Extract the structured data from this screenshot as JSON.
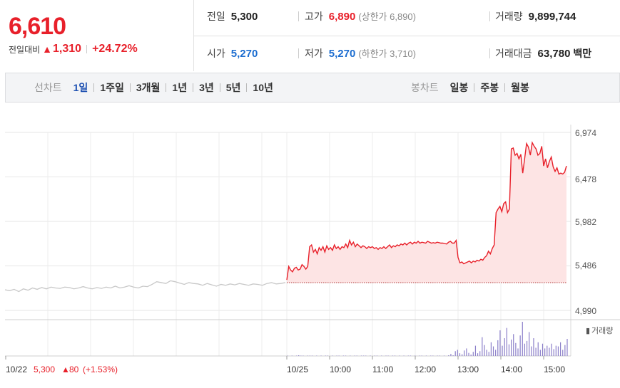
{
  "quote": {
    "price": "6,610",
    "change_label": "전일대비",
    "change_arrow": "▲",
    "change_value": "1,310",
    "change_pct": "+24.72%"
  },
  "stats": {
    "prev_close": {
      "label": "전일",
      "value": "5,300"
    },
    "open": {
      "label": "시가",
      "value": "5,270"
    },
    "high": {
      "label": "고가",
      "value": "6,890",
      "sub_label": "(상한가 6,890)"
    },
    "low": {
      "label": "저가",
      "value": "5,270",
      "sub_label": "(하한가 3,710)"
    },
    "volume": {
      "label": "거래량",
      "value": "9,899,744"
    },
    "amount": {
      "label": "거래대금",
      "value": "63,780",
      "unit": "백만"
    }
  },
  "line_chart_tabs": {
    "title": "선차트",
    "items": [
      "1일",
      "1주일",
      "3개월",
      "1년",
      "3년",
      "5년",
      "10년"
    ],
    "active": "1일"
  },
  "candle_chart_tabs": {
    "title": "봉차트",
    "items": [
      "일봉",
      "주봉",
      "월봉"
    ]
  },
  "colors": {
    "up": "#e8202a",
    "down": "#1c6dd0",
    "prev_line": "#c8c8c8",
    "volume": "#8b7fc9",
    "fill": "#fde4e4"
  },
  "chart_data": {
    "type": "line",
    "y_ticks": [
      "6,974",
      "6,478",
      "5,982",
      "5,486",
      "4,990"
    ],
    "ylim": [
      4990,
      6974
    ],
    "x_ticks": [
      "10/25",
      "10:00",
      "11:00",
      "12:00",
      "13:00",
      "14:00",
      "15:00"
    ],
    "prev_day_label": "10/22",
    "prev_day_summary": {
      "close": "5,300",
      "arrow": "▲",
      "change": "80",
      "pct": "(+1.53%)"
    },
    "volume_legend": "거래량",
    "prev_close_value": 5300,
    "series": [
      {
        "name": "10/22",
        "values": [
          5220,
          5210,
          5225,
          5200,
          5230,
          5215,
          5240,
          5225,
          5245,
          5230,
          5250,
          5240,
          5235,
          5250,
          5245,
          5230,
          5240,
          5255,
          5240,
          5230,
          5245,
          5235,
          5250,
          5240,
          5260,
          5240,
          5250,
          5265,
          5250,
          5240,
          5260,
          5255,
          5280,
          5310,
          5300,
          5290,
          5320,
          5310,
          5295,
          5280,
          5300,
          5290,
          5285,
          5270,
          5290,
          5275,
          5260,
          5280,
          5270,
          5285,
          5275,
          5290,
          5280,
          5270,
          5285,
          5280,
          5270,
          5290,
          5300,
          5285,
          5290,
          5300
        ]
      },
      {
        "name": "10/25",
        "values": [
          5330,
          5480,
          5440,
          5420,
          5460,
          5470,
          5440,
          5450,
          5500,
          5480,
          5450,
          5480,
          5700,
          5720,
          5640,
          5670,
          5620,
          5690,
          5660,
          5700,
          5640,
          5710,
          5670,
          5690,
          5660,
          5720,
          5680,
          5700,
          5670,
          5700,
          5690,
          5730,
          5690,
          5770,
          5720,
          5750,
          5700,
          5730,
          5710,
          5690,
          5710,
          5700,
          5680,
          5700,
          5690,
          5700,
          5680,
          5690,
          5670,
          5690,
          5680,
          5700,
          5680,
          5700,
          5720,
          5690,
          5710,
          5700,
          5720,
          5710,
          5730,
          5720,
          5740,
          5720,
          5740,
          5750,
          5730,
          5750,
          5740,
          5760,
          5740,
          5750,
          5745,
          5740,
          5760,
          5750,
          5740,
          5745,
          5740,
          5750,
          5745,
          5740,
          5740,
          5735,
          5730,
          5750,
          5760,
          5740,
          5740,
          5770,
          5580,
          5520,
          5530,
          5510,
          5520,
          5530,
          5540,
          5520,
          5540,
          5530,
          5550,
          5540,
          5560,
          5550,
          5580,
          5600,
          5650,
          5620,
          5680,
          5720,
          6080,
          6120,
          6150,
          6090,
          6180,
          6200,
          6080,
          6120,
          6790,
          6800,
          6720,
          6740,
          6680,
          6730,
          6520,
          6680,
          6850,
          6810,
          6720,
          6860,
          6820,
          6790,
          6720,
          6740,
          6820,
          6600,
          6680,
          6580,
          6650,
          6700,
          6590,
          6540,
          6580,
          6510,
          6520,
          6510,
          6530,
          6600
        ]
      }
    ],
    "volume": [
      1,
      0,
      1,
      0,
      1,
      2,
      1,
      1,
      0,
      1,
      1,
      1,
      0,
      1,
      0,
      1,
      0,
      1,
      1,
      0,
      1,
      0,
      1,
      1,
      0,
      1,
      1,
      0,
      1,
      0,
      1,
      1,
      0,
      1,
      1,
      1,
      0,
      1,
      0,
      1,
      1,
      0,
      1,
      0,
      1,
      1,
      0,
      1,
      1,
      0,
      1,
      0,
      1,
      0,
      1,
      1,
      0,
      1,
      0,
      1,
      1,
      0,
      1,
      0,
      1,
      1,
      0,
      1,
      1,
      0,
      1,
      0,
      2,
      6,
      2,
      14,
      18,
      8,
      5,
      16,
      22,
      9,
      4,
      12,
      30,
      8,
      14,
      55,
      32,
      18,
      12,
      40,
      28,
      18,
      46,
      75,
      30,
      52,
      82,
      34,
      48,
      64,
      38,
      22,
      60,
      100,
      36,
      44,
      70,
      28,
      52,
      24,
      40,
      18,
      36,
      22,
      30,
      24,
      36,
      20,
      30,
      28,
      40,
      18,
      32,
      50
    ]
  }
}
